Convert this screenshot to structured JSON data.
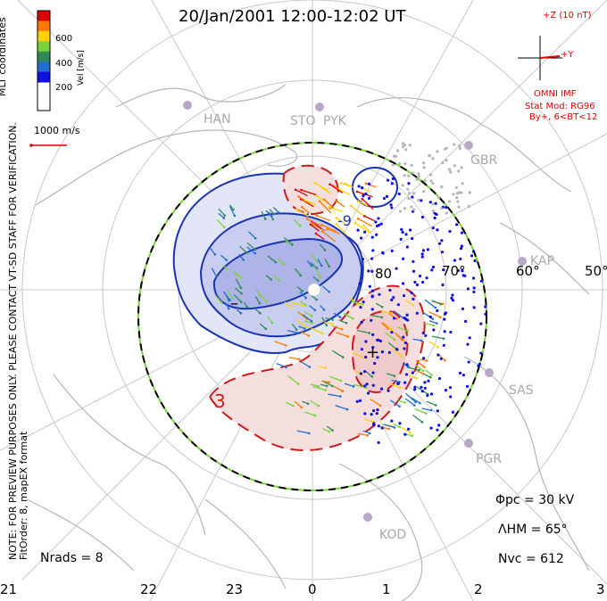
{
  "title": "20/Jan/2001 12:00-12:02 UT",
  "note_line1": "NOTE: FOR PREVIEW PURPOSES ONLY. PLEASE CONTACT VT-SD STAFF FOR VERIFICATION.",
  "note_line2": "FitOrder: 8, mapEX format",
  "mlt_coord_label": "MLT coordinates",
  "colorbar": {
    "label": "Vel [m/s]",
    "ticks": [
      "600",
      "400",
      "200"
    ],
    "colors": [
      "#e00000",
      "#ff7a00",
      "#ffd200",
      "#7ad23c",
      "#2e8b57",
      "#1f6fd0",
      "#1010e0"
    ]
  },
  "velocity_scale": "1000 m/s",
  "imf": {
    "z_label": "+Z (10 nT)",
    "y_label": "+Y",
    "source": "OMNI IMF",
    "model": "Stat Mod: RG96",
    "condition": "By+, 6<BT<12"
  },
  "latitude_labels": [
    "80",
    "70°",
    "60°",
    "50°"
  ],
  "stations": [
    "HAN",
    "STO",
    "PYK",
    "GBR",
    "KAP",
    "SAS",
    "PGR",
    "KOD"
  ],
  "contour_labels": {
    "neg": "-9",
    "pos": "3",
    "min_marker": "–",
    "max_marker": "+"
  },
  "stats": {
    "phi_pc": "Φpc = 30 kV",
    "lambda_hm": "ΛHM = 65°",
    "n_vc": "Nvc = 612",
    "n_rads": "Nrads = 8"
  },
  "mlt_hours": [
    "21",
    "22",
    "23",
    "0",
    "1",
    "2",
    "3"
  ],
  "colors": {
    "negative_cell": "#1a33b0",
    "positive_cell": "#cc1a1a",
    "map_grey": "#b5b5b5"
  }
}
